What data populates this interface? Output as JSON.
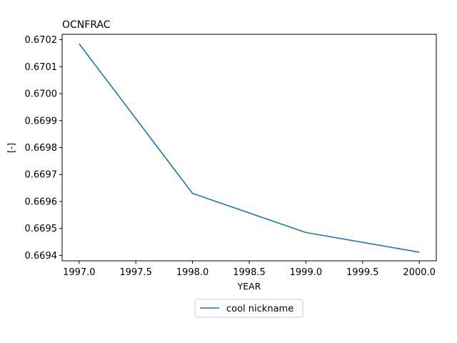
{
  "chart_data": {
    "type": "line",
    "title": "OCNFRAC",
    "xlabel": "YEAR",
    "ylabel": "[-]",
    "x": [
      1997.0,
      1998.0,
      1999.0,
      2000.0
    ],
    "series": [
      {
        "name": "cool nickname",
        "color": "#1f77b4",
        "values": [
          0.670185,
          0.66963,
          0.669485,
          0.669412
        ]
      }
    ],
    "xlim": [
      1996.85,
      2000.15
    ],
    "ylim": [
      0.66938,
      0.67022
    ],
    "xticks": [
      1997.0,
      1997.5,
      1998.0,
      1998.5,
      1999.0,
      1999.5,
      2000.0
    ],
    "xtick_labels": [
      "1997.0",
      "1997.5",
      "1998.0",
      "1998.5",
      "1999.0",
      "1999.5",
      "2000.0"
    ],
    "yticks": [
      0.6694,
      0.6695,
      0.6696,
      0.6697,
      0.6698,
      0.6699,
      0.67,
      0.6701,
      0.6702
    ],
    "ytick_labels": [
      "0.6694",
      "0.6695",
      "0.6696",
      "0.6697",
      "0.6698",
      "0.6699",
      "0.6700",
      "0.6701",
      "0.6702"
    ],
    "grid": false,
    "legend_position": "below-center"
  }
}
